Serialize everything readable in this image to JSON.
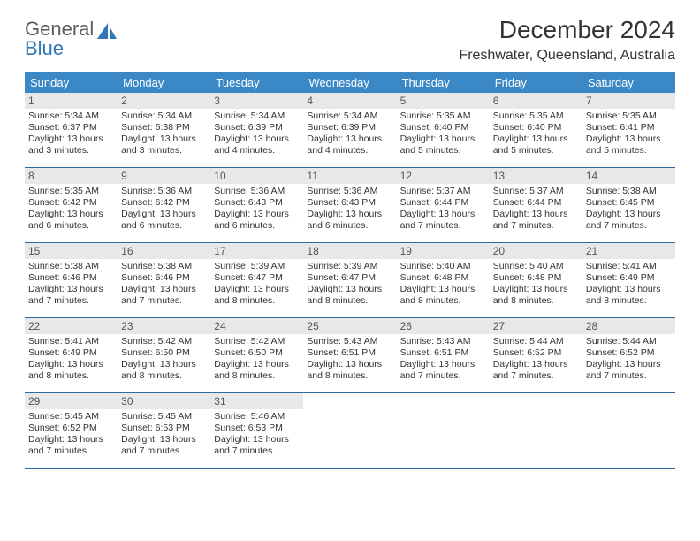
{
  "logo": {
    "line1": "General",
    "line2": "Blue"
  },
  "title": "December 2024",
  "location": "Freshwater, Queensland, Australia",
  "colors": {
    "header_bg": "#3b88c6",
    "header_text": "#ffffff",
    "daynum_bg": "#e8e8e8",
    "week_border": "#2f6aa0",
    "logo_gray": "#5c5c5c",
    "logo_blue": "#2f77b8"
  },
  "day_names": [
    "Sunday",
    "Monday",
    "Tuesday",
    "Wednesday",
    "Thursday",
    "Friday",
    "Saturday"
  ],
  "weeks": [
    [
      {
        "day": "1",
        "sunrise": "Sunrise: 5:34 AM",
        "sunset": "Sunset: 6:37 PM",
        "d1": "Daylight: 13 hours",
        "d2": "and 3 minutes."
      },
      {
        "day": "2",
        "sunrise": "Sunrise: 5:34 AM",
        "sunset": "Sunset: 6:38 PM",
        "d1": "Daylight: 13 hours",
        "d2": "and 3 minutes."
      },
      {
        "day": "3",
        "sunrise": "Sunrise: 5:34 AM",
        "sunset": "Sunset: 6:39 PM",
        "d1": "Daylight: 13 hours",
        "d2": "and 4 minutes."
      },
      {
        "day": "4",
        "sunrise": "Sunrise: 5:34 AM",
        "sunset": "Sunset: 6:39 PM",
        "d1": "Daylight: 13 hours",
        "d2": "and 4 minutes."
      },
      {
        "day": "5",
        "sunrise": "Sunrise: 5:35 AM",
        "sunset": "Sunset: 6:40 PM",
        "d1": "Daylight: 13 hours",
        "d2": "and 5 minutes."
      },
      {
        "day": "6",
        "sunrise": "Sunrise: 5:35 AM",
        "sunset": "Sunset: 6:40 PM",
        "d1": "Daylight: 13 hours",
        "d2": "and 5 minutes."
      },
      {
        "day": "7",
        "sunrise": "Sunrise: 5:35 AM",
        "sunset": "Sunset: 6:41 PM",
        "d1": "Daylight: 13 hours",
        "d2": "and 5 minutes."
      }
    ],
    [
      {
        "day": "8",
        "sunrise": "Sunrise: 5:35 AM",
        "sunset": "Sunset: 6:42 PM",
        "d1": "Daylight: 13 hours",
        "d2": "and 6 minutes."
      },
      {
        "day": "9",
        "sunrise": "Sunrise: 5:36 AM",
        "sunset": "Sunset: 6:42 PM",
        "d1": "Daylight: 13 hours",
        "d2": "and 6 minutes."
      },
      {
        "day": "10",
        "sunrise": "Sunrise: 5:36 AM",
        "sunset": "Sunset: 6:43 PM",
        "d1": "Daylight: 13 hours",
        "d2": "and 6 minutes."
      },
      {
        "day": "11",
        "sunrise": "Sunrise: 5:36 AM",
        "sunset": "Sunset: 6:43 PM",
        "d1": "Daylight: 13 hours",
        "d2": "and 6 minutes."
      },
      {
        "day": "12",
        "sunrise": "Sunrise: 5:37 AM",
        "sunset": "Sunset: 6:44 PM",
        "d1": "Daylight: 13 hours",
        "d2": "and 7 minutes."
      },
      {
        "day": "13",
        "sunrise": "Sunrise: 5:37 AM",
        "sunset": "Sunset: 6:44 PM",
        "d1": "Daylight: 13 hours",
        "d2": "and 7 minutes."
      },
      {
        "day": "14",
        "sunrise": "Sunrise: 5:38 AM",
        "sunset": "Sunset: 6:45 PM",
        "d1": "Daylight: 13 hours",
        "d2": "and 7 minutes."
      }
    ],
    [
      {
        "day": "15",
        "sunrise": "Sunrise: 5:38 AM",
        "sunset": "Sunset: 6:46 PM",
        "d1": "Daylight: 13 hours",
        "d2": "and 7 minutes."
      },
      {
        "day": "16",
        "sunrise": "Sunrise: 5:38 AM",
        "sunset": "Sunset: 6:46 PM",
        "d1": "Daylight: 13 hours",
        "d2": "and 7 minutes."
      },
      {
        "day": "17",
        "sunrise": "Sunrise: 5:39 AM",
        "sunset": "Sunset: 6:47 PM",
        "d1": "Daylight: 13 hours",
        "d2": "and 8 minutes."
      },
      {
        "day": "18",
        "sunrise": "Sunrise: 5:39 AM",
        "sunset": "Sunset: 6:47 PM",
        "d1": "Daylight: 13 hours",
        "d2": "and 8 minutes."
      },
      {
        "day": "19",
        "sunrise": "Sunrise: 5:40 AM",
        "sunset": "Sunset: 6:48 PM",
        "d1": "Daylight: 13 hours",
        "d2": "and 8 minutes."
      },
      {
        "day": "20",
        "sunrise": "Sunrise: 5:40 AM",
        "sunset": "Sunset: 6:48 PM",
        "d1": "Daylight: 13 hours",
        "d2": "and 8 minutes."
      },
      {
        "day": "21",
        "sunrise": "Sunrise: 5:41 AM",
        "sunset": "Sunset: 6:49 PM",
        "d1": "Daylight: 13 hours",
        "d2": "and 8 minutes."
      }
    ],
    [
      {
        "day": "22",
        "sunrise": "Sunrise: 5:41 AM",
        "sunset": "Sunset: 6:49 PM",
        "d1": "Daylight: 13 hours",
        "d2": "and 8 minutes."
      },
      {
        "day": "23",
        "sunrise": "Sunrise: 5:42 AM",
        "sunset": "Sunset: 6:50 PM",
        "d1": "Daylight: 13 hours",
        "d2": "and 8 minutes."
      },
      {
        "day": "24",
        "sunrise": "Sunrise: 5:42 AM",
        "sunset": "Sunset: 6:50 PM",
        "d1": "Daylight: 13 hours",
        "d2": "and 8 minutes."
      },
      {
        "day": "25",
        "sunrise": "Sunrise: 5:43 AM",
        "sunset": "Sunset: 6:51 PM",
        "d1": "Daylight: 13 hours",
        "d2": "and 8 minutes."
      },
      {
        "day": "26",
        "sunrise": "Sunrise: 5:43 AM",
        "sunset": "Sunset: 6:51 PM",
        "d1": "Daylight: 13 hours",
        "d2": "and 7 minutes."
      },
      {
        "day": "27",
        "sunrise": "Sunrise: 5:44 AM",
        "sunset": "Sunset: 6:52 PM",
        "d1": "Daylight: 13 hours",
        "d2": "and 7 minutes."
      },
      {
        "day": "28",
        "sunrise": "Sunrise: 5:44 AM",
        "sunset": "Sunset: 6:52 PM",
        "d1": "Daylight: 13 hours",
        "d2": "and 7 minutes."
      }
    ],
    [
      {
        "day": "29",
        "sunrise": "Sunrise: 5:45 AM",
        "sunset": "Sunset: 6:52 PM",
        "d1": "Daylight: 13 hours",
        "d2": "and 7 minutes."
      },
      {
        "day": "30",
        "sunrise": "Sunrise: 5:45 AM",
        "sunset": "Sunset: 6:53 PM",
        "d1": "Daylight: 13 hours",
        "d2": "and 7 minutes."
      },
      {
        "day": "31",
        "sunrise": "Sunrise: 5:46 AM",
        "sunset": "Sunset: 6:53 PM",
        "d1": "Daylight: 13 hours",
        "d2": "and 7 minutes."
      },
      {
        "empty": true
      },
      {
        "empty": true
      },
      {
        "empty": true
      },
      {
        "empty": true
      }
    ]
  ]
}
